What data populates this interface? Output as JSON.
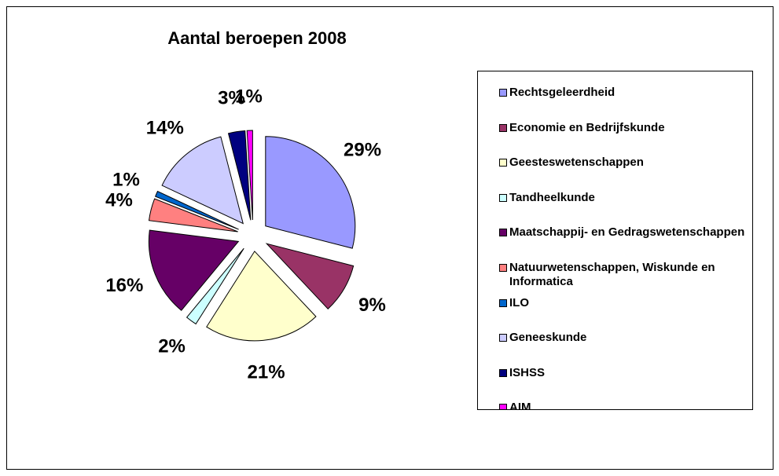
{
  "chart_data": {
    "type": "pie",
    "title": "Aantal beroepen 2008",
    "categories": [
      "Rechtsgeleerdheid",
      "Economie en Bedrijfskunde",
      "Geesteswetenschappen",
      "Tandheelkunde",
      "Maatschappij- en Gedragswetenschappen",
      "Natuurwetenschappen, Wiskunde en Informatica",
      "ILO",
      "Geneeskunde",
      "ISHSS",
      "AIM"
    ],
    "values": [
      29,
      9,
      21,
      2,
      16,
      4,
      1,
      14,
      3,
      1
    ],
    "value_labels": [
      "29%",
      "9%",
      "21%",
      "2%",
      "16%",
      "4%",
      "1%",
      "14%",
      "3%",
      "1%"
    ],
    "colors": [
      "#9999ff",
      "#993366",
      "#ffffcc",
      "#ccffff",
      "#660066",
      "#ff8080",
      "#0066cc",
      "#ccccff",
      "#000080",
      "#ff00ff"
    ],
    "legend": "right"
  }
}
